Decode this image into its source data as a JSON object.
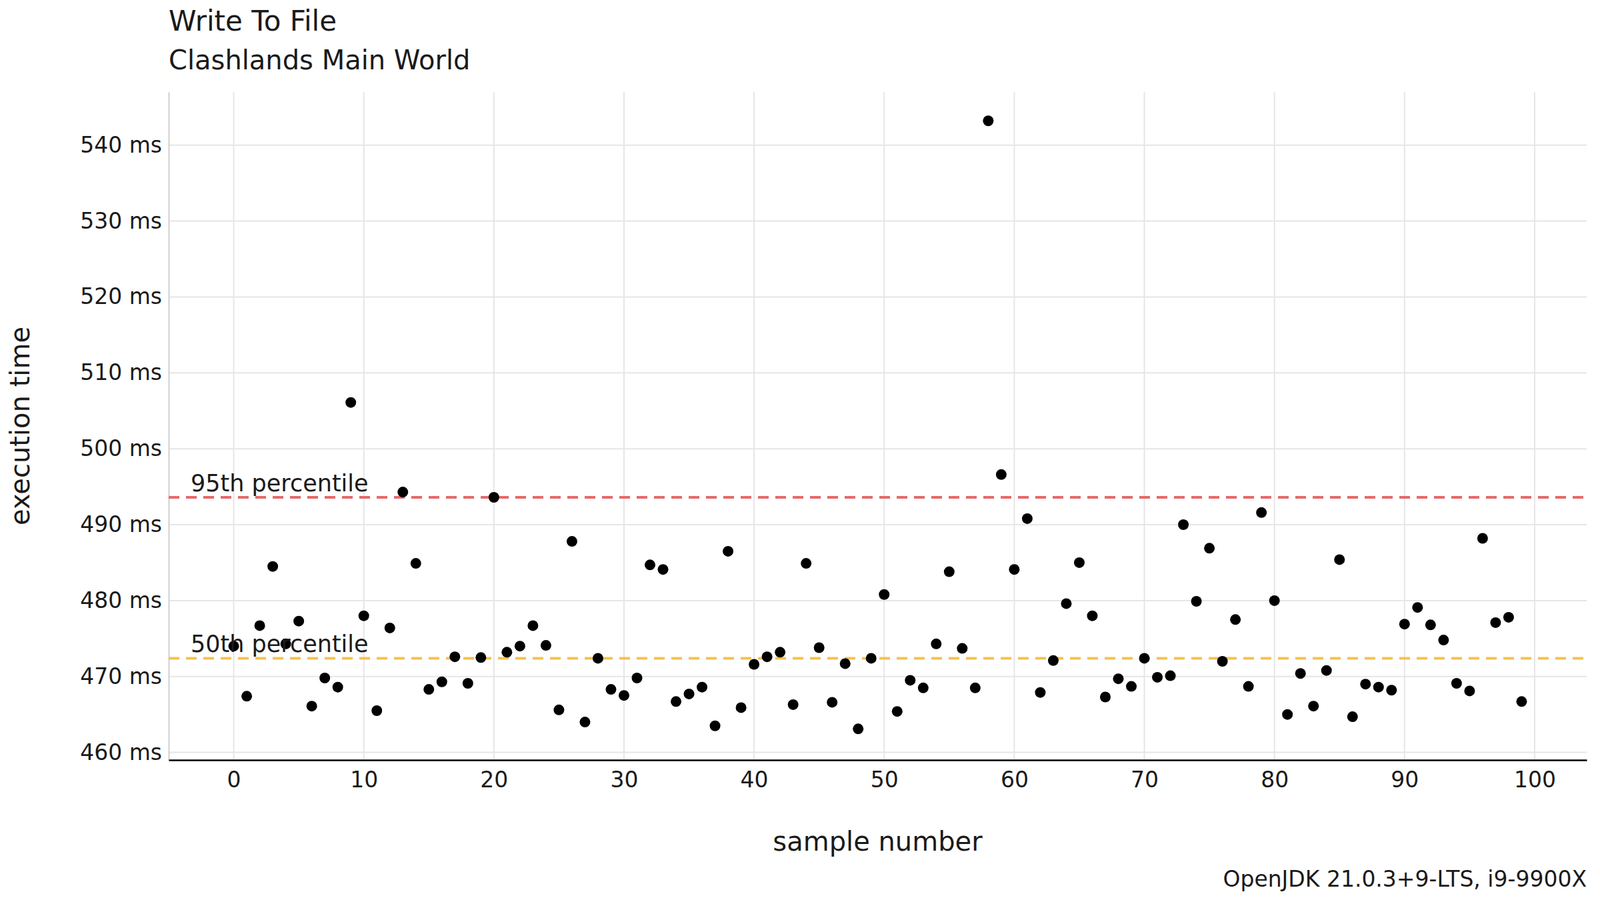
{
  "chart_data": {
    "type": "scatter",
    "title": "Write To File",
    "subtitle": "Clashlands Main World",
    "x_label": "sample number",
    "y_label": "execution time",
    "caption": "OpenJDK 21.0.3+9-LTS, i9-9900X",
    "grid": true,
    "marker": "circle",
    "color": "#000000",
    "xlim": [
      -5,
      104
    ],
    "ylim": [
      459,
      547
    ],
    "xticks": [
      0,
      10,
      20,
      30,
      40,
      50,
      60,
      70,
      80,
      90,
      100
    ],
    "yticks": [
      {
        "value": 460,
        "label": "460 ms"
      },
      {
        "value": 470,
        "label": "470 ms"
      },
      {
        "value": 480,
        "label": "480 ms"
      },
      {
        "value": 490,
        "label": "490 ms"
      },
      {
        "value": 500,
        "label": "500 ms"
      },
      {
        "value": 510,
        "label": "510 ms"
      },
      {
        "value": 520,
        "label": "520 ms"
      },
      {
        "value": 530,
        "label": "530 ms"
      },
      {
        "value": 540,
        "label": "540 ms"
      }
    ],
    "reference_lines": [
      {
        "label": "95th percentile",
        "value": 493.6,
        "color": "#e46a6a",
        "line_style": "dashed"
      },
      {
        "label": "50th percentile",
        "value": 472.4,
        "color": "#f7c14c",
        "line_style": "dashed"
      }
    ],
    "x": [
      0,
      1,
      2,
      3,
      4,
      5,
      6,
      7,
      8,
      9,
      10,
      11,
      12,
      13,
      14,
      15,
      16,
      17,
      18,
      19,
      20,
      21,
      22,
      23,
      24,
      25,
      26,
      27,
      28,
      29,
      30,
      31,
      32,
      33,
      34,
      35,
      36,
      37,
      38,
      39,
      40,
      41,
      42,
      43,
      44,
      45,
      46,
      47,
      48,
      49,
      50,
      51,
      52,
      53,
      54,
      55,
      56,
      57,
      58,
      59,
      60,
      61,
      62,
      63,
      64,
      65,
      66,
      67,
      68,
      69,
      70,
      71,
      72,
      73,
      74,
      75,
      76,
      77,
      78,
      79,
      80,
      81,
      82,
      83,
      84,
      85,
      86,
      87,
      88,
      89,
      90,
      91,
      92,
      93,
      94,
      95,
      96,
      97,
      98,
      99
    ],
    "values": [
      474.0,
      467.4,
      476.7,
      484.5,
      474.3,
      477.3,
      466.1,
      469.8,
      468.6,
      506.1,
      478.0,
      465.5,
      476.4,
      494.3,
      484.9,
      468.3,
      469.3,
      472.6,
      469.1,
      472.5,
      493.6,
      473.2,
      474.0,
      476.7,
      474.1,
      465.6,
      487.8,
      464.0,
      472.4,
      468.3,
      467.5,
      469.8,
      484.7,
      484.1,
      466.7,
      467.7,
      468.6,
      463.5,
      486.5,
      465.9,
      471.6,
      472.6,
      473.2,
      466.3,
      484.9,
      473.8,
      466.6,
      471.7,
      463.1,
      472.4,
      480.8,
      465.4,
      469.5,
      468.5,
      474.3,
      483.8,
      473.7,
      468.5,
      543.2,
      496.6,
      484.1,
      490.8,
      467.9,
      472.1,
      479.6,
      485.0,
      478.0,
      467.3,
      469.7,
      468.7,
      472.4,
      469.9,
      470.1,
      490.0,
      479.9,
      486.9,
      472.0,
      477.5,
      468.7,
      491.6,
      480.0,
      465.0,
      470.4,
      466.1,
      470.8,
      485.4,
      464.7,
      469.0,
      468.6,
      468.2,
      476.9,
      479.1,
      476.8,
      474.8,
      469.1,
      468.1,
      488.2,
      477.1,
      477.8,
      466.7
    ]
  }
}
